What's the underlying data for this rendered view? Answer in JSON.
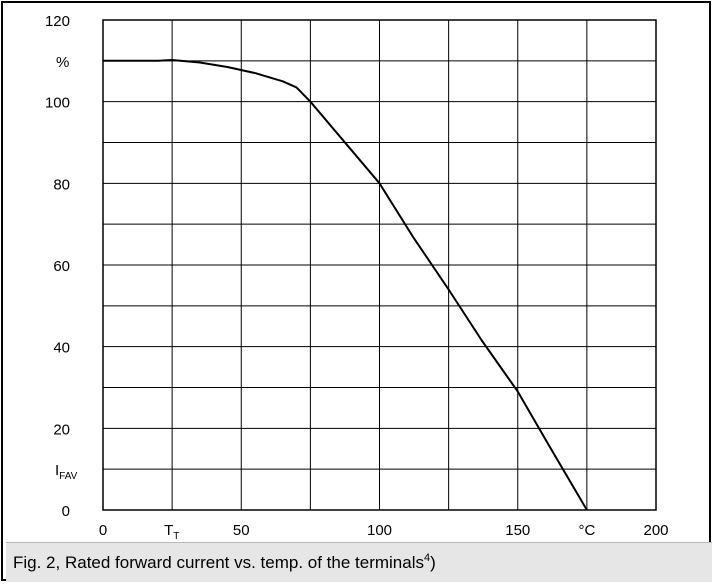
{
  "chart_data": {
    "type": "line",
    "title": "",
    "xlabel": "",
    "ylabel": "",
    "x_unit": "°C",
    "y_unit": "%",
    "y_axis_label": {
      "main": "I",
      "subscript": "FAV"
    },
    "x_marker_label": {
      "main": "T",
      "subscript": "T"
    },
    "xlim": [
      0,
      200
    ],
    "ylim": [
      0,
      120
    ],
    "xticks": [
      0,
      50,
      100,
      150,
      200
    ],
    "yticks": [
      0,
      20,
      40,
      60,
      80,
      100,
      120
    ],
    "grid": true,
    "series": [
      {
        "name": "",
        "x": [
          0,
          10,
          20,
          25,
          35,
          45,
          55,
          65,
          70,
          75,
          90,
          100,
          112,
          125,
          137,
          150,
          162,
          175
        ],
        "y": [
          110,
          110,
          110,
          110.2,
          109.6,
          108.5,
          107,
          105,
          103.5,
          100,
          88,
          80,
          67,
          54,
          41.5,
          29,
          15,
          0
        ]
      }
    ]
  },
  "caption": {
    "text": "Fig. 2, Rated forward current vs. temp. of the terminals",
    "footnote": "4",
    "suffix": ")"
  }
}
